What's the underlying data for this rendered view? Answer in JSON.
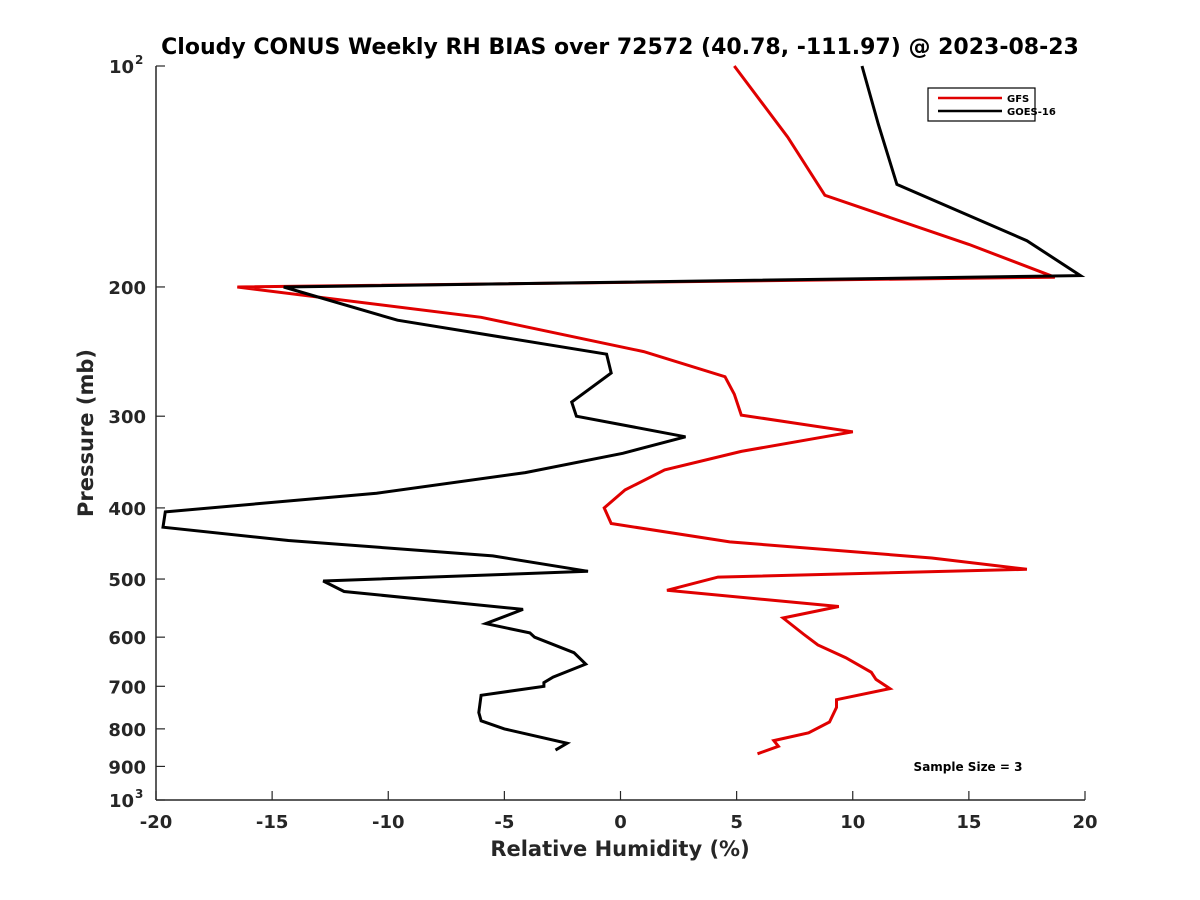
{
  "chart_data": {
    "type": "line",
    "title": "Cloudy CONUS Weekly RH BIAS over 72572 (40.78, -111.97) @ 2023-08-23",
    "xlabel": "Relative Humidity (%)",
    "ylabel": "Pressure (mb)",
    "xlim": [
      -20,
      20
    ],
    "ylim": [
      100,
      1000
    ],
    "yscale": "log",
    "yreversed": true,
    "x_ticks": [
      -20,
      -15,
      -10,
      -5,
      0,
      5,
      10,
      15,
      20
    ],
    "y_ticks": [
      {
        "value": 100,
        "label": "10",
        "sup": "2"
      },
      {
        "value": 200,
        "label": "200"
      },
      {
        "value": 300,
        "label": "300"
      },
      {
        "value": 400,
        "label": "400"
      },
      {
        "value": 500,
        "label": "500"
      },
      {
        "value": 600,
        "label": "600"
      },
      {
        "value": 700,
        "label": "700"
      },
      {
        "value": 800,
        "label": "800"
      },
      {
        "value": 900,
        "label": "900"
      },
      {
        "value": 1000,
        "label": "10",
        "sup": "3"
      }
    ],
    "legend_position": "top-right",
    "series": [
      {
        "name": "GFS",
        "color": "#e00000",
        "points": [
          [
            4.9,
            100
          ],
          [
            7.2,
            125
          ],
          [
            8.8,
            150
          ],
          [
            15.0,
            175
          ],
          [
            18.7,
            194
          ],
          [
            -16.5,
            200
          ],
          [
            -6.0,
            220
          ],
          [
            1.0,
            245
          ],
          [
            4.5,
            265
          ],
          [
            4.9,
            280
          ],
          [
            5.2,
            299
          ],
          [
            10.0,
            315
          ],
          [
            5.2,
            335
          ],
          [
            1.9,
            355
          ],
          [
            0.2,
            378
          ],
          [
            -0.7,
            400
          ],
          [
            -0.4,
            420
          ],
          [
            4.7,
            445
          ],
          [
            13.4,
            468
          ],
          [
            17.5,
            485
          ],
          [
            4.2,
            497
          ],
          [
            2.0,
            518
          ],
          [
            9.4,
            545
          ],
          [
            7.0,
            565
          ],
          [
            7.9,
            595
          ],
          [
            8.5,
            615
          ],
          [
            9.7,
            640
          ],
          [
            10.8,
            670
          ],
          [
            11.0,
            685
          ],
          [
            11.6,
            705
          ],
          [
            9.3,
            730
          ],
          [
            9.3,
            748
          ],
          [
            9.0,
            783
          ],
          [
            8.1,
            810
          ],
          [
            6.6,
            830
          ],
          [
            6.8,
            845
          ],
          [
            5.9,
            865
          ]
        ]
      },
      {
        "name": "GOES-16",
        "color": "#000000",
        "points": [
          [
            10.4,
            100
          ],
          [
            11.1,
            120
          ],
          [
            11.9,
            145
          ],
          [
            17.5,
            173
          ],
          [
            19.8,
            193
          ],
          [
            -14.5,
            200
          ],
          [
            -9.6,
            222
          ],
          [
            -0.6,
            247
          ],
          [
            -0.4,
            262
          ],
          [
            -2.1,
            287
          ],
          [
            -1.9,
            300
          ],
          [
            2.8,
            320
          ],
          [
            0.1,
            337
          ],
          [
            -4.1,
            358
          ],
          [
            -10.5,
            382
          ],
          [
            -19.6,
            405
          ],
          [
            -19.7,
            425
          ],
          [
            -14.3,
            443
          ],
          [
            -5.5,
            465
          ],
          [
            -1.4,
            488
          ],
          [
            -12.8,
            503
          ],
          [
            -11.9,
            520
          ],
          [
            -4.2,
            550
          ],
          [
            -5.8,
            575
          ],
          [
            -3.9,
            592
          ],
          [
            -3.7,
            600
          ],
          [
            -2.0,
            630
          ],
          [
            -1.5,
            653
          ],
          [
            -2.9,
            680
          ],
          [
            -3.3,
            692
          ],
          [
            -3.3,
            700
          ],
          [
            -6.0,
            720
          ],
          [
            -6.1,
            760
          ],
          [
            -6.0,
            780
          ],
          [
            -5.0,
            800
          ],
          [
            -2.3,
            837
          ],
          [
            -2.8,
            855
          ]
        ]
      }
    ],
    "annotation": "Sample Size = 3"
  }
}
